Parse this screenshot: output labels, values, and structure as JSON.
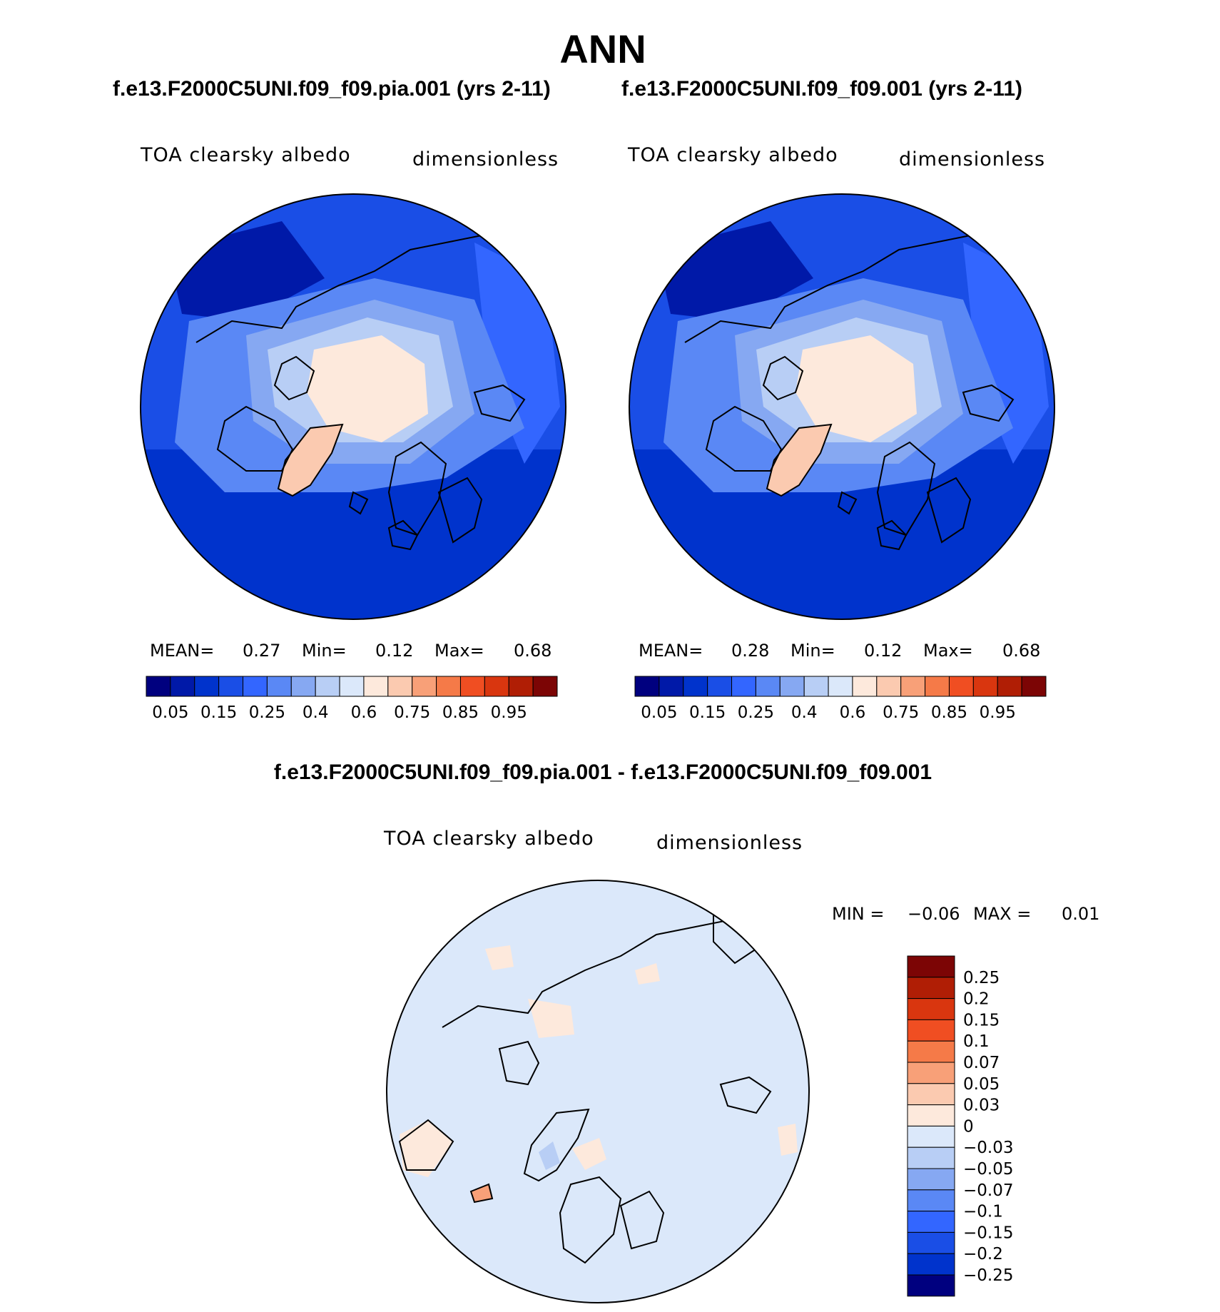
{
  "title": "ANN",
  "panels": [
    {
      "case_title": "f.e13.F2000C5UNI.f09_f09.pia.001 (yrs 2-11)",
      "variable": "TOA clearsky albedo",
      "units": "dimensionless",
      "stats": {
        "mean_label": "MEAN=",
        "mean": "0.27",
        "min_label": "Min=",
        "min": "0.12",
        "max_label": "Max=",
        "max": "0.68"
      }
    },
    {
      "case_title": "f.e13.F2000C5UNI.f09_f09.001 (yrs 2-11)",
      "variable": "TOA clearsky albedo",
      "units": "dimensionless",
      "stats": {
        "mean_label": "MEAN=",
        "mean": "0.28",
        "min_label": "Min=",
        "min": "0.12",
        "max_label": "Max=",
        "max": "0.68"
      }
    }
  ],
  "colorbar": {
    "colors": [
      "#00007f",
      "#0019a8",
      "#0033cc",
      "#1a4ee6",
      "#3366ff",
      "#5a88f5",
      "#86a8f2",
      "#b8cef5",
      "#dbe8fa",
      "#fde9dc",
      "#fbcab0",
      "#f8a078",
      "#f57a48",
      "#f04e22",
      "#d9360f",
      "#b01e05",
      "#7c0505"
    ],
    "labels": [
      "0.05",
      "0.15",
      "0.25",
      "0.4",
      "0.6",
      "0.75",
      "0.85",
      "0.95"
    ]
  },
  "difference": {
    "title": "f.e13.F2000C5UNI.f09_f09.pia.001 - f.e13.F2000C5UNI.f09_f09.001",
    "variable": "TOA clearsky albedo",
    "units": "dimensionless",
    "stats": {
      "min_label": "MIN =",
      "min": "−0.06",
      "max_label": "MAX =",
      "max": "0.01"
    },
    "colorbar": {
      "colors": [
        "#7c0505",
        "#b01e05",
        "#d9360f",
        "#f04e22",
        "#f57a48",
        "#f8a078",
        "#fbcab0",
        "#fde9dc",
        "#dbe8fa",
        "#b8cef5",
        "#86a8f2",
        "#5a88f5",
        "#3366ff",
        "#1a4ee6",
        "#0033cc",
        "#00007f"
      ],
      "labels": [
        "0.25",
        "0.2",
        "0.15",
        "0.1",
        "0.07",
        "0.05",
        "0.03",
        "0",
        "−0.03",
        "−0.05",
        "−0.07",
        "−0.1",
        "−0.15",
        "−0.2",
        "−0.25"
      ]
    }
  }
}
